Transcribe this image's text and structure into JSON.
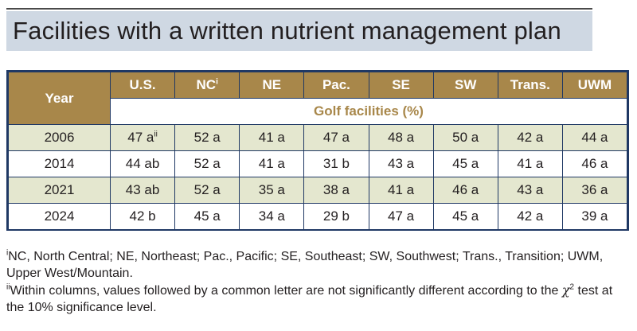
{
  "title": "Facilities with a written nutrient management plan",
  "table": {
    "year_header": "Year",
    "columns": [
      {
        "label": "U.S.",
        "sup": ""
      },
      {
        "label": "NC",
        "sup": "i"
      },
      {
        "label": "NE",
        "sup": ""
      },
      {
        "label": "Pac.",
        "sup": ""
      },
      {
        "label": "SE",
        "sup": ""
      },
      {
        "label": "SW",
        "sup": ""
      },
      {
        "label": "Trans.",
        "sup": ""
      },
      {
        "label": "UWM",
        "sup": ""
      }
    ],
    "subheader": "Golf facilities (%)",
    "rows": [
      {
        "year": "2006",
        "cells": [
          "47 a",
          "52 a",
          "41 a",
          "47 a",
          "48 a",
          "50 a",
          "42 a",
          "44 a"
        ],
        "first_sup": "ii"
      },
      {
        "year": "2014",
        "cells": [
          "44 ab",
          "52 a",
          "41 a",
          "31 b",
          "43 a",
          "45 a",
          "41 a",
          "46 a"
        ],
        "first_sup": ""
      },
      {
        "year": "2021",
        "cells": [
          "43 ab",
          "52 a",
          "35 a",
          "38 a",
          "41 a",
          "46 a",
          "43 a",
          "36 a"
        ],
        "first_sup": ""
      },
      {
        "year": "2024",
        "cells": [
          "42 b",
          "45 a",
          "34 a",
          "29 b",
          "47 a",
          "45 a",
          "42 a",
          "39 a"
        ],
        "first_sup": ""
      }
    ]
  },
  "footnotes": {
    "note1_marker": "i",
    "note1_text": "NC, North Central; NE, Northeast; Pac., Pacific; SE, Southeast; SW, Southwest; Trans., Transition; UWM, Upper West/Mountain.",
    "note2_marker": "ii",
    "note2_text_a": "Within columns, values followed by a common letter are not significantly different according to the ",
    "note2_chi": "χ",
    "note2_chi_sup": "2",
    "note2_text_b": " test at the 10% significance level."
  },
  "colors": {
    "header_gold": "#a8874a",
    "border_navy": "#1f3864",
    "row_shade": "#e4e7cf",
    "title_band": "#cfd8e3"
  }
}
